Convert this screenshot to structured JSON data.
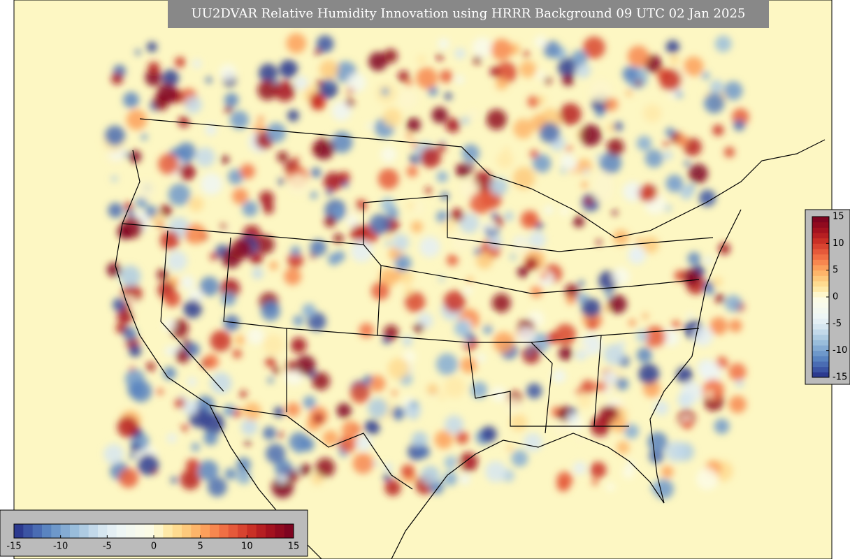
{
  "title": "UU2DVAR Relative Humidity Innovation using HRRR Background 09 UTC 02 Jan 2025",
  "colormap": [
    "#2c3a8f",
    "#3b54a3",
    "#4a6cb3",
    "#5a84c0",
    "#6e98ca",
    "#84abd3",
    "#99bddb",
    "#aecbe2",
    "#c3d9ea",
    "#d6e6f0",
    "#e4eff4",
    "#eef6f5",
    "#f3f8f0",
    "#f8faec",
    "#fbfbe6",
    "#fdf6cc",
    "#fee9a8",
    "#fedb90",
    "#fdc97c",
    "#fdb56a",
    "#fb9f5b",
    "#f7874f",
    "#f06f44",
    "#e5593a",
    "#d84430",
    "#c93026",
    "#b61f22",
    "#a3121f",
    "#900a1f",
    "#7e0420"
  ],
  "colorbar_horizontal": {
    "lim": [
      -15,
      15
    ],
    "ticks": [
      -15,
      -10,
      -5,
      0,
      5,
      10,
      15
    ]
  },
  "colorbar_vertical": {
    "lim": [
      -15,
      15
    ],
    "ticks": [
      15,
      10,
      5,
      0,
      -5,
      -10,
      -15
    ]
  }
}
